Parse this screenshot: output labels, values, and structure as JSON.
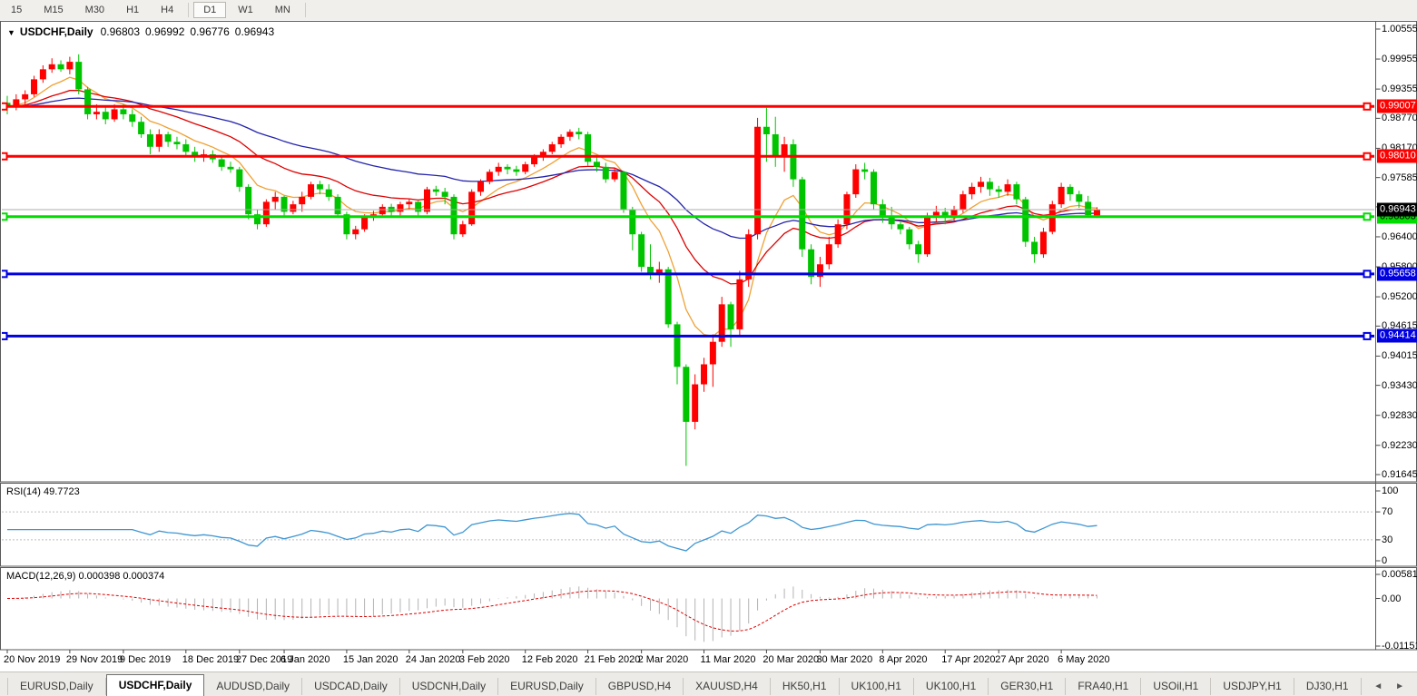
{
  "toolbar": {
    "items": [
      "15",
      "M15",
      "M30",
      "H1",
      "H4",
      "D1",
      "W1",
      "MN"
    ],
    "active": "D1"
  },
  "chart": {
    "dropdown_icon": "▼",
    "symbol_title": "USDCHF,Daily",
    "open": "0.96803",
    "high": "0.96992",
    "low": "0.96776",
    "close": "0.96943"
  },
  "colors": {
    "bull": "#FE0000",
    "bear": "#00C400",
    "ma_fast": "#EFA133",
    "ma_mid": "#DE0000",
    "ma_slow": "#2323AC",
    "hline_red": "#FE0000",
    "hline_green": "#00DC00",
    "hline_blue": "#0000E0",
    "current_line": "#ACACAC",
    "current_badge_bg": "#000000",
    "rsi_line": "#3E96D2",
    "level_dash": "#BDBDBD",
    "macd_hist": "#B3B3B3",
    "macd_signal": "#DE0000",
    "pane_border": "#5A5A5A"
  },
  "price_axis": {
    "ticks": [
      1.00555,
      0.99955,
      0.99355,
      0.9877,
      0.9817,
      0.97585,
      0.97,
      0.964,
      0.958,
      0.952,
      0.94615,
      0.94015,
      0.9343,
      0.9283,
      0.9223,
      0.91645
    ]
  },
  "hlines": [
    {
      "price": 0.99007,
      "label": "0.99007",
      "color": "#FE0000",
      "text_color": "#FFFFFF"
    },
    {
      "price": 0.9801,
      "label": "0.98010",
      "color": "#FE0000",
      "text_color": "#FFFFFF"
    },
    {
      "price": 0.96803,
      "label": "0.96803",
      "color": "#00DC00",
      "text_color": "#000000"
    },
    {
      "price": 0.95658,
      "label": "0.95658",
      "color": "#0000E0",
      "text_color": "#FFFFFF"
    },
    {
      "price": 0.94414,
      "label": "0.94414",
      "color": "#0000E0",
      "text_color": "#FFFFFF"
    }
  ],
  "current_price": {
    "value": 0.96943,
    "label": "0.96943"
  },
  "chart_data": {
    "type": "candlestick",
    "title": "USDCHF,Daily",
    "ylim": [
      0.91645,
      1.00555
    ],
    "grid": false,
    "x_labels": [
      {
        "text": "20 Nov 2019",
        "bar": 0
      },
      {
        "text": "29 Nov 2019",
        "bar": 7
      },
      {
        "text": "9 Dec 2019",
        "bar": 13
      },
      {
        "text": "18 Dec 2019",
        "bar": 20
      },
      {
        "text": "27 Dec 2019",
        "bar": 26
      },
      {
        "text": "6 Jan 2020",
        "bar": 31
      },
      {
        "text": "15 Jan 2020",
        "bar": 38
      },
      {
        "text": "24 Jan 2020",
        "bar": 45
      },
      {
        "text": "3 Feb 2020",
        "bar": 51
      },
      {
        "text": "12 Feb 2020",
        "bar": 58
      },
      {
        "text": "21 Feb 2020",
        "bar": 65
      },
      {
        "text": "2 Mar 2020",
        "bar": 71
      },
      {
        "text": "11 Mar 2020",
        "bar": 78
      },
      {
        "text": "20 Mar 2020",
        "bar": 85
      },
      {
        "text": "30 Mar 2020",
        "bar": 91
      },
      {
        "text": "8 Apr 2020",
        "bar": 98
      },
      {
        "text": "17 Apr 2020",
        "bar": 105
      },
      {
        "text": "27 Apr 2020",
        "bar": 111
      },
      {
        "text": "6 May 2020",
        "bar": 118
      }
    ],
    "candles": [
      [
        0.9908,
        0.9922,
        0.9885,
        0.99
      ],
      [
        0.99,
        0.9925,
        0.9893,
        0.9915
      ],
      [
        0.9915,
        0.9933,
        0.9905,
        0.9925
      ],
      [
        0.9925,
        0.9962,
        0.992,
        0.9955
      ],
      [
        0.9955,
        0.9983,
        0.9948,
        0.9975
      ],
      [
        0.9975,
        0.9997,
        0.9968,
        0.9985
      ],
      [
        0.9985,
        0.9993,
        0.997,
        0.9975
      ],
      [
        0.9975,
        1.0,
        0.9965,
        0.999
      ],
      [
        0.999,
        1.0005,
        0.9925,
        0.9935
      ],
      [
        0.9935,
        0.994,
        0.9875,
        0.9885
      ],
      [
        0.9885,
        0.9905,
        0.9875,
        0.989
      ],
      [
        0.989,
        0.99,
        0.9865,
        0.9875
      ],
      [
        0.9875,
        0.9905,
        0.987,
        0.9895
      ],
      [
        0.9895,
        0.9905,
        0.9875,
        0.9885
      ],
      [
        0.9885,
        0.9895,
        0.986,
        0.987
      ],
      [
        0.987,
        0.988,
        0.9838,
        0.9845
      ],
      [
        0.9845,
        0.9855,
        0.9805,
        0.982
      ],
      [
        0.982,
        0.9855,
        0.981,
        0.9845
      ],
      [
        0.9845,
        0.985,
        0.982,
        0.983
      ],
      [
        0.983,
        0.984,
        0.9815,
        0.9825
      ],
      [
        0.9825,
        0.9835,
        0.98,
        0.981
      ],
      [
        0.981,
        0.982,
        0.979,
        0.98
      ],
      [
        0.98,
        0.9815,
        0.979,
        0.9805
      ],
      [
        0.9805,
        0.9813,
        0.9788,
        0.9795
      ],
      [
        0.9795,
        0.9803,
        0.9772,
        0.978
      ],
      [
        0.978,
        0.979,
        0.9768,
        0.9775
      ],
      [
        0.9775,
        0.978,
        0.973,
        0.974
      ],
      [
        0.974,
        0.9745,
        0.9675,
        0.9685
      ],
      [
        0.9685,
        0.9695,
        0.9655,
        0.9665
      ],
      [
        0.9665,
        0.9715,
        0.966,
        0.971
      ],
      [
        0.971,
        0.973,
        0.9695,
        0.972
      ],
      [
        0.972,
        0.9722,
        0.968,
        0.969
      ],
      [
        0.969,
        0.9712,
        0.9685,
        0.9705
      ],
      [
        0.9705,
        0.973,
        0.969,
        0.972
      ],
      [
        0.972,
        0.975,
        0.9715,
        0.9745
      ],
      [
        0.9745,
        0.9752,
        0.9725,
        0.9735
      ],
      [
        0.9735,
        0.9745,
        0.9712,
        0.972
      ],
      [
        0.972,
        0.9725,
        0.9678,
        0.9685
      ],
      [
        0.9685,
        0.969,
        0.9635,
        0.9645
      ],
      [
        0.9645,
        0.9662,
        0.9635,
        0.9655
      ],
      [
        0.9655,
        0.9685,
        0.965,
        0.968
      ],
      [
        0.968,
        0.9692,
        0.9672,
        0.9685
      ],
      [
        0.9685,
        0.9705,
        0.9678,
        0.97
      ],
      [
        0.97,
        0.9706,
        0.9682,
        0.969
      ],
      [
        0.969,
        0.971,
        0.9682,
        0.9705
      ],
      [
        0.9705,
        0.9715,
        0.9695,
        0.971
      ],
      [
        0.971,
        0.9712,
        0.9682,
        0.969
      ],
      [
        0.969,
        0.974,
        0.9685,
        0.9735
      ],
      [
        0.9735,
        0.9742,
        0.9722,
        0.973
      ],
      [
        0.973,
        0.9738,
        0.9705,
        0.972
      ],
      [
        0.972,
        0.9725,
        0.9635,
        0.9645
      ],
      [
        0.9645,
        0.9672,
        0.964,
        0.9665
      ],
      [
        0.9665,
        0.9735,
        0.9662,
        0.973
      ],
      [
        0.973,
        0.9755,
        0.9722,
        0.975
      ],
      [
        0.975,
        0.9775,
        0.9745,
        0.977
      ],
      [
        0.977,
        0.9788,
        0.9762,
        0.978
      ],
      [
        0.978,
        0.9785,
        0.9765,
        0.9775
      ],
      [
        0.9775,
        0.9782,
        0.9762,
        0.977
      ],
      [
        0.977,
        0.979,
        0.9765,
        0.9785
      ],
      [
        0.9785,
        0.9805,
        0.978,
        0.98
      ],
      [
        0.98,
        0.9815,
        0.9792,
        0.981
      ],
      [
        0.981,
        0.983,
        0.9805,
        0.9825
      ],
      [
        0.9825,
        0.9845,
        0.9818,
        0.984
      ],
      [
        0.984,
        0.9855,
        0.9832,
        0.985
      ],
      [
        0.985,
        0.9858,
        0.9835,
        0.9845
      ],
      [
        0.9845,
        0.985,
        0.9782,
        0.979
      ],
      [
        0.979,
        0.98,
        0.977,
        0.978
      ],
      [
        0.978,
        0.9788,
        0.9748,
        0.9755
      ],
      [
        0.9755,
        0.9778,
        0.975,
        0.977
      ],
      [
        0.977,
        0.9772,
        0.9688,
        0.9695
      ],
      [
        0.9695,
        0.97,
        0.9613,
        0.9645
      ],
      [
        0.9645,
        0.965,
        0.957,
        0.958
      ],
      [
        0.958,
        0.9625,
        0.9555,
        0.9565
      ],
      [
        0.9565,
        0.959,
        0.9548,
        0.9575
      ],
      [
        0.9575,
        0.958,
        0.9458,
        0.9465
      ],
      [
        0.9465,
        0.947,
        0.9345,
        0.938
      ],
      [
        0.938,
        0.9385,
        0.9182,
        0.927
      ],
      [
        0.927,
        0.9365,
        0.9255,
        0.9345
      ],
      [
        0.9345,
        0.9398,
        0.933,
        0.9385
      ],
      [
        0.9385,
        0.9445,
        0.934,
        0.943
      ],
      [
        0.943,
        0.952,
        0.942,
        0.9505
      ],
      [
        0.9505,
        0.951,
        0.942,
        0.9455
      ],
      [
        0.9455,
        0.9572,
        0.944,
        0.9555
      ],
      [
        0.9555,
        0.9655,
        0.954,
        0.9645
      ],
      [
        0.9645,
        0.9878,
        0.9635,
        0.986
      ],
      [
        0.986,
        0.9898,
        0.979,
        0.9845
      ],
      [
        0.9845,
        0.988,
        0.978,
        0.98
      ],
      [
        0.98,
        0.984,
        0.977,
        0.9825
      ],
      [
        0.9825,
        0.9835,
        0.974,
        0.9755
      ],
      [
        0.9755,
        0.976,
        0.96,
        0.9615
      ],
      [
        0.9615,
        0.9625,
        0.9545,
        0.956
      ],
      [
        0.956,
        0.96,
        0.954,
        0.9585
      ],
      [
        0.9585,
        0.964,
        0.9575,
        0.9625
      ],
      [
        0.9625,
        0.9675,
        0.9618,
        0.9665
      ],
      [
        0.9665,
        0.973,
        0.9655,
        0.9725
      ],
      [
        0.9725,
        0.9785,
        0.9718,
        0.9775
      ],
      [
        0.9775,
        0.9788,
        0.9755,
        0.977
      ],
      [
        0.977,
        0.9775,
        0.9695,
        0.9705
      ],
      [
        0.9705,
        0.9715,
        0.9668,
        0.968
      ],
      [
        0.968,
        0.97,
        0.9655,
        0.9665
      ],
      [
        0.9665,
        0.9672,
        0.9645,
        0.9655
      ],
      [
        0.9655,
        0.966,
        0.9615,
        0.9625
      ],
      [
        0.9625,
        0.9632,
        0.9588,
        0.9605
      ],
      [
        0.9605,
        0.9688,
        0.96,
        0.968
      ],
      [
        0.968,
        0.9702,
        0.967,
        0.969
      ],
      [
        0.969,
        0.9698,
        0.9665,
        0.968
      ],
      [
        0.968,
        0.9702,
        0.9672,
        0.9695
      ],
      [
        0.9695,
        0.9732,
        0.9688,
        0.9725
      ],
      [
        0.9725,
        0.9748,
        0.9715,
        0.974
      ],
      [
        0.974,
        0.976,
        0.9728,
        0.975
      ],
      [
        0.975,
        0.9758,
        0.9722,
        0.9735
      ],
      [
        0.9735,
        0.9742,
        0.9718,
        0.973
      ],
      [
        0.973,
        0.9755,
        0.9722,
        0.9745
      ],
      [
        0.9745,
        0.975,
        0.9705,
        0.9715
      ],
      [
        0.9715,
        0.972,
        0.962,
        0.963
      ],
      [
        0.963,
        0.964,
        0.9588,
        0.9605
      ],
      [
        0.9605,
        0.9658,
        0.9598,
        0.965
      ],
      [
        0.965,
        0.9712,
        0.9645,
        0.9705
      ],
      [
        0.9705,
        0.9748,
        0.9698,
        0.974
      ],
      [
        0.974,
        0.9745,
        0.9712,
        0.9725
      ],
      [
        0.9725,
        0.9732,
        0.9698,
        0.971
      ],
      [
        0.971,
        0.9722,
        0.9678,
        0.9683
      ],
      [
        0.96803,
        0.96992,
        0.96776,
        0.96943
      ]
    ],
    "overlays": [
      {
        "name": "ma-fast",
        "type": "ema",
        "period": 8,
        "color": "#EFA133"
      },
      {
        "name": "ma-mid",
        "type": "ema",
        "period": 20,
        "color": "#DE0000"
      },
      {
        "name": "ma-slow",
        "type": "ema",
        "period": 45,
        "color": "#2323AC"
      }
    ],
    "indicators": [
      {
        "name": "RSI",
        "label": "RSI(14)",
        "value_label": "49.7723",
        "period": 14,
        "range": [
          0,
          100
        ],
        "levels": [
          70,
          30
        ],
        "scale_ticks": [
          "100",
          "70",
          "30",
          "0"
        ],
        "scale_values": [
          100,
          70,
          30,
          0
        ]
      },
      {
        "name": "MACD",
        "label": "MACD(12,26,9)",
        "value_label": "0.000398 0.000374",
        "fast": 12,
        "slow": 26,
        "signal": 9,
        "scale_ticks": [
          "0.005818",
          "0.00",
          "-0.011514"
        ],
        "scale_values": [
          0.005818,
          0,
          -0.011514
        ]
      }
    ]
  },
  "tabs": {
    "items": [
      "EURUSD,Daily",
      "USDCHF,Daily",
      "AUDUSD,Daily",
      "USDCAD,Daily",
      "USDCNH,Daily",
      "EURUSD,Daily",
      "GBPUSD,H4",
      "XAUUSD,H4",
      "HK50,H1",
      "UK100,H1",
      "UK100,H1",
      "GER30,H1",
      "FRA40,H1",
      "USOil,H1",
      "USDJPY,H1",
      "DJ30,H1"
    ],
    "active_index": 1,
    "scroll_left_icon": "◄",
    "scroll_right_icon": "►"
  }
}
